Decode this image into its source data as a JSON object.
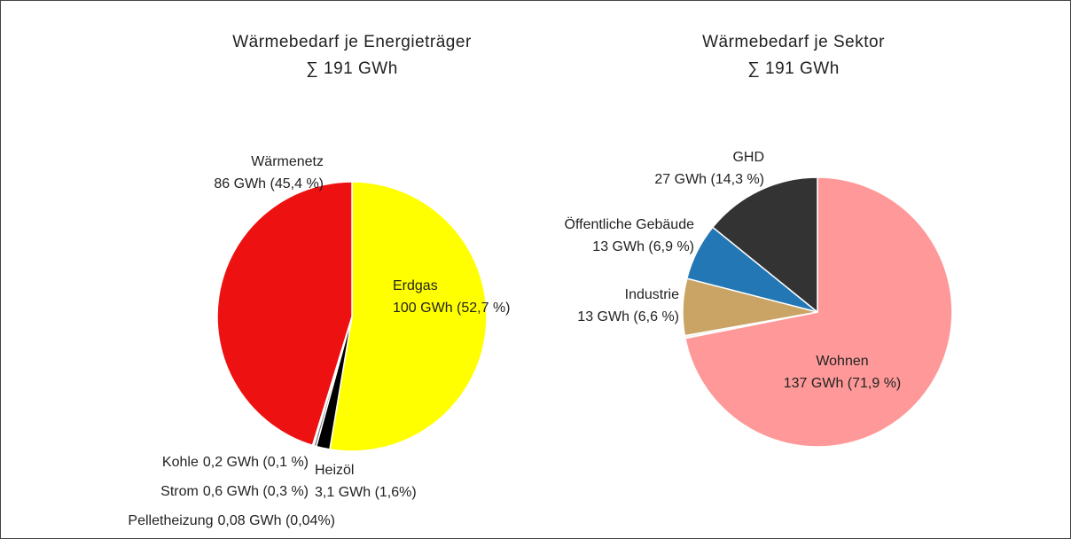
{
  "chart_data": [
    {
      "type": "pie",
      "title": "Wärmebedarf je Energieträger",
      "subtitle": "∑ 191 GWh",
      "categories": [
        "Erdgas",
        "Heizöl",
        "Strom",
        "Kohle",
        "Pelletheizung",
        "Wärmenetz"
      ],
      "values": [
        100,
        3.1,
        0.6,
        0.2,
        0.08,
        86
      ],
      "value_labels": [
        "100 GWh (52,7 %)",
        "3,1 GWh (1,6%)",
        "0,6 GWh (0,3 %)",
        "0,2 GWh (0,1 %)",
        "0,08 GWh (0,04%)",
        "86 GWh (45,4 %)"
      ],
      "colors": [
        "#ffff00",
        "#000000",
        "#7f7f7f",
        "#8b5a2b",
        "#4caf50",
        "#ee1111"
      ]
    },
    {
      "type": "pie",
      "title": "Wärmebedarf je Sektor",
      "subtitle": "∑ 191 GWh",
      "categories": [
        "Wohnen",
        null,
        "Industrie",
        "Öffentliche Gebäude",
        "GHD"
      ],
      "values": [
        137,
        0.6,
        13,
        13,
        27
      ],
      "value_labels": [
        "137 GWh (71,9 %)",
        null,
        "13 GWh (6,6 %)",
        "13 GWh (6,9 %)",
        "27 GWh (14,3 %)"
      ],
      "colors": [
        "#ff9999",
        "#f2f2f2",
        "#c9a465",
        "#2277b4",
        "#333333"
      ]
    }
  ]
}
